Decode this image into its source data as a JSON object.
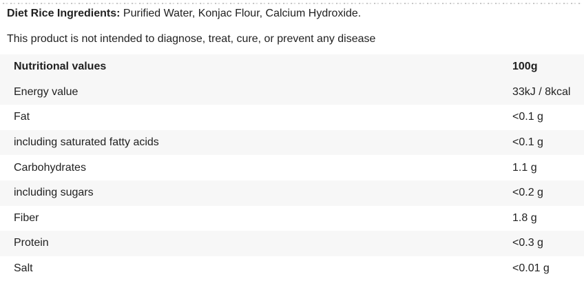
{
  "ingredients": {
    "label": "Diet Rice Ingredients:",
    "text": " Purified Water, Konjac Flour, Calcium Hydroxide."
  },
  "disclaimer": "This product is not intended to diagnose, treat, cure, or prevent any disease",
  "table": {
    "header": {
      "label": "Nutritional values",
      "value": "100g"
    },
    "rows": [
      {
        "label": "Energy value",
        "value": "33kJ / 8kcal"
      },
      {
        "label": "Fat",
        "value": "<0.1 g"
      },
      {
        "label": "including saturated fatty acids",
        "value": "<0.1 g"
      },
      {
        "label": "Carbohydrates",
        "value": "1.1 g"
      },
      {
        "label": "including sugars",
        "value": "<0.2 g"
      },
      {
        "label": "Fiber",
        "value": "1.8 g"
      },
      {
        "label": "Protein",
        "value": "<0.3 g"
      },
      {
        "label": "Salt",
        "value": "<0.01 g"
      }
    ]
  },
  "colors": {
    "row_stripe": "#f7f7f7",
    "text": "#212121",
    "background": "#ffffff"
  }
}
